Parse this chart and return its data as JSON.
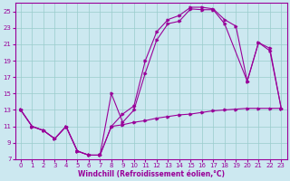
{
  "xlabel": "Windchill (Refroidissement éolien,°C)",
  "bg_color": "#cce8f0",
  "line_color": "#990099",
  "grid_color": "#99cccc",
  "xlim": [
    -0.5,
    23.5
  ],
  "ylim": [
    7,
    26
  ],
  "xticks": [
    0,
    1,
    2,
    3,
    4,
    5,
    6,
    7,
    8,
    9,
    10,
    11,
    12,
    13,
    14,
    15,
    16,
    17,
    18,
    19,
    20,
    21,
    22,
    23
  ],
  "yticks": [
    7,
    9,
    11,
    13,
    15,
    17,
    19,
    21,
    23,
    25
  ],
  "line1_x": [
    0,
    1,
    2,
    3,
    4,
    5,
    6,
    7,
    8,
    9,
    10,
    11,
    12,
    13,
    14,
    15,
    16,
    17,
    18,
    19,
    20,
    21,
    22,
    23
  ],
  "line1_y": [
    13,
    11,
    10.5,
    9.5,
    11.0,
    8.0,
    7.5,
    7.5,
    11.0,
    11.2,
    11.5,
    11.7,
    12.0,
    12.2,
    12.4,
    12.5,
    12.7,
    12.9,
    13.0,
    13.1,
    13.2,
    13.2,
    13.2,
    13.2
  ],
  "line2_x": [
    0,
    1,
    2,
    3,
    4,
    5,
    6,
    7,
    8,
    9,
    10,
    11,
    12,
    13,
    14,
    15,
    16,
    17,
    18,
    20,
    21,
    22,
    23
  ],
  "line2_y": [
    13,
    11,
    10.5,
    9.5,
    11.0,
    8.0,
    7.5,
    7.5,
    15.0,
    11.5,
    13.0,
    17.5,
    21.5,
    23.5,
    23.8,
    25.3,
    25.2,
    25.2,
    23.5,
    16.5,
    21.2,
    20.2,
    13.2
  ],
  "line3_x": [
    0,
    1,
    2,
    3,
    4,
    5,
    6,
    7,
    8,
    9,
    10,
    11,
    12,
    13,
    14,
    15,
    16,
    17,
    18,
    19,
    20,
    21,
    22,
    23
  ],
  "line3_y": [
    13,
    11,
    10.5,
    9.5,
    11.0,
    8.0,
    7.5,
    7.5,
    11.0,
    12.5,
    13.5,
    19.0,
    22.5,
    24.0,
    24.5,
    25.5,
    25.5,
    25.3,
    24.0,
    23.2,
    16.5,
    21.2,
    20.5,
    13.2
  ]
}
